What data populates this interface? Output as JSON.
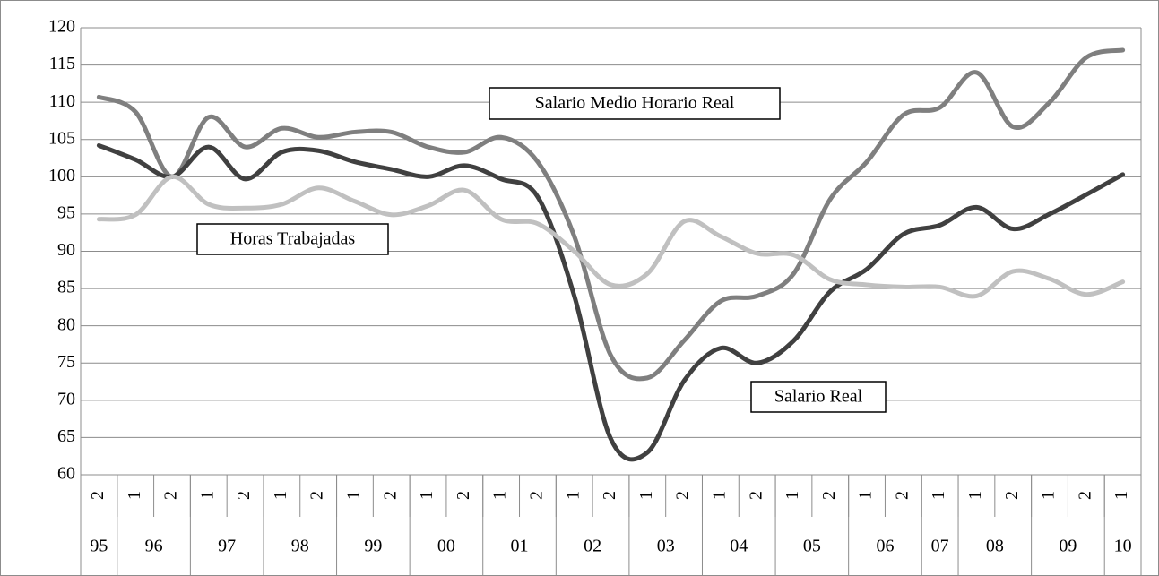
{
  "chart_data": {
    "type": "line",
    "categories": [
      "2",
      "1",
      "2",
      "1",
      "2",
      "1",
      "2",
      "1",
      "2",
      "1",
      "2",
      "1",
      "2",
      "1",
      "2",
      "1",
      "2",
      "1",
      "2",
      "1",
      "2",
      "1",
      "2",
      "1",
      "1",
      "2",
      "1",
      "2",
      "1"
    ],
    "groups": [
      {
        "label": "95",
        "count": 1
      },
      {
        "label": "96",
        "count": 2
      },
      {
        "label": "97",
        "count": 2
      },
      {
        "label": "98",
        "count": 2
      },
      {
        "label": "99",
        "count": 2
      },
      {
        "label": "00",
        "count": 2
      },
      {
        "label": "01",
        "count": 2
      },
      {
        "label": "02",
        "count": 2
      },
      {
        "label": "03",
        "count": 2
      },
      {
        "label": "04",
        "count": 2
      },
      {
        "label": "05",
        "count": 2
      },
      {
        "label": "06",
        "count": 2
      },
      {
        "label": "07",
        "count": 1
      },
      {
        "label": "08",
        "count": 2
      },
      {
        "label": "09",
        "count": 2
      },
      {
        "label": "10",
        "count": 1
      }
    ],
    "series": [
      {
        "name": "Salario Medio Horario Real",
        "color": "#7f7f7f",
        "values": [
          110.7,
          108.7,
          100,
          108,
          104,
          106.5,
          105.3,
          106,
          106,
          104,
          103.3,
          105.3,
          102,
          92,
          76,
          73,
          78,
          83.3,
          84,
          87,
          97,
          102,
          108.3,
          109.3,
          114,
          106.7,
          110,
          116,
          117
        ]
      },
      {
        "name": "Salario Real",
        "color": "#404040",
        "values": [
          104.2,
          102.3,
          100,
          104,
          99.7,
          103.3,
          103.5,
          102,
          101,
          100,
          101.5,
          99.7,
          97.3,
          84,
          64.8,
          63,
          72.6,
          77,
          75,
          78,
          84.6,
          87.6,
          92.3,
          93.5,
          95.9,
          93,
          95,
          97.6,
          100.3
        ]
      },
      {
        "name": "Horas Trabajadas",
        "color": "#c0c0c0",
        "values": [
          94.3,
          94.9,
          100,
          96.3,
          95.8,
          96.3,
          98.5,
          96.7,
          94.9,
          96.1,
          98.2,
          94.3,
          93.7,
          90,
          85.5,
          87,
          94,
          92,
          89.7,
          89.5,
          86.2,
          85.5,
          85.2,
          85.2,
          84,
          87.3,
          86.3,
          84.2,
          85.9
        ]
      }
    ],
    "ylim": [
      60,
      120
    ],
    "yticks": [
      60,
      65,
      70,
      75,
      80,
      85,
      90,
      95,
      100,
      105,
      110,
      115,
      120
    ],
    "grid": true
  }
}
